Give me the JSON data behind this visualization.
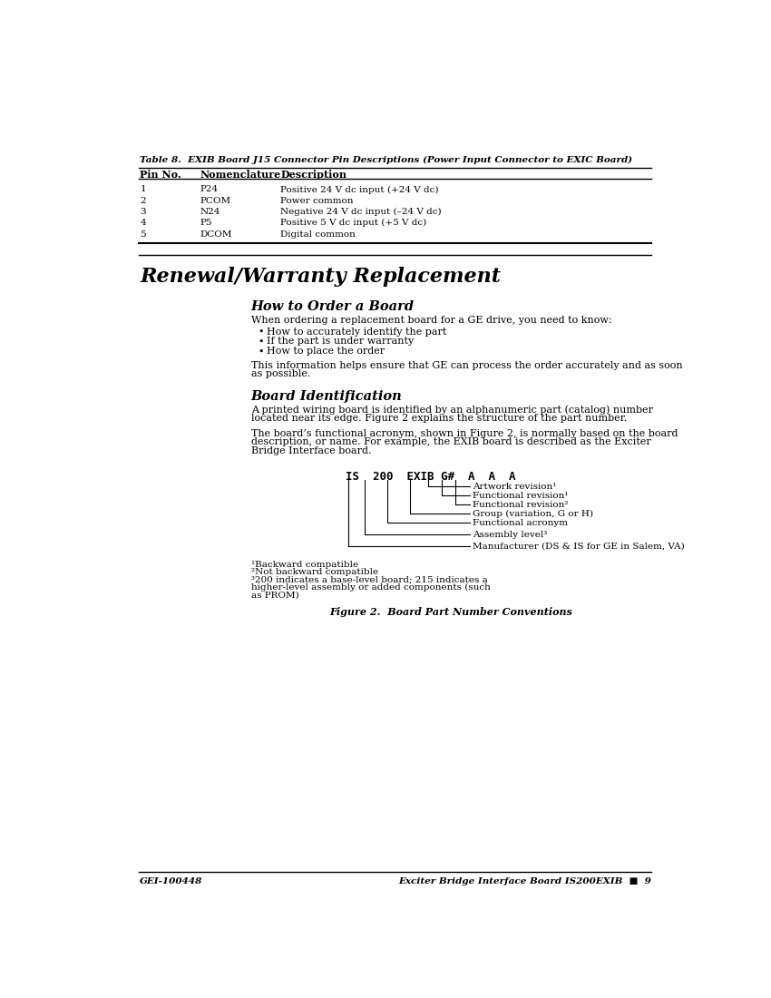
{
  "bg_color": "#ffffff",
  "table_title": "Table 8.  EXIB Board J15 Connector Pin Descriptions (Power Input Connector to EXIC Board)",
  "table_headers": [
    "Pin No.",
    "Nomenclature",
    "Description"
  ],
  "table_rows": [
    [
      "1",
      "P24",
      "Positive 24 V dc input (+24 V dc)"
    ],
    [
      "2",
      "PCOM",
      "Power common"
    ],
    [
      "3",
      "N24",
      "Negative 24 V dc input (–24 V dc)"
    ],
    [
      "4",
      "P5",
      "Positive 5 V dc input (+5 V dc)"
    ],
    [
      "5",
      "DCOM",
      "Digital common"
    ]
  ],
  "section_title": "Renewal/Warranty Replacement",
  "subsection1": "How to Order a Board",
  "para1": "When ordering a replacement board for a GE drive, you need to know:",
  "bullets": [
    "How to accurately identify the part",
    "If the part is under warranty",
    "How to place the order"
  ],
  "para2_lines": [
    "This information helps ensure that GE can process the order accurately and as soon",
    "as possible."
  ],
  "subsection2": "Board Identification",
  "para3_lines": [
    "A printed wiring board is identified by an alphanumeric part (catalog) number",
    "located near its edge. Figure 2 explains the structure of the part number."
  ],
  "para4_lines": [
    "The board’s functional acronym, shown in Figure 2, is normally based on the board",
    "description, or name. For example, the EXIB board is described as the Exciter",
    "Bridge Interface board."
  ],
  "part_number_label": "IS  200  EXIB G#  A  A  A",
  "diagram_labels": [
    "Artwork revision¹",
    "Functional revision¹",
    "Functional revision²",
    "Group (variation, G or H)",
    "Functional acronym",
    "Assembly level³",
    "Manufacturer (DS & IS for GE in Salem, VA)"
  ],
  "footnotes": [
    "¹Backward compatible",
    "²Not backward compatible",
    "³200 indicates a base-level board; 215 indicates a",
    "higher-level assembly or added components (such",
    "as PROM)"
  ],
  "figure_caption": "Figure 2.  Board Part Number Conventions",
  "footer_left": "GEI-100448",
  "footer_right": "Exciter Bridge Interface Board IS200EXIB  ■  9"
}
